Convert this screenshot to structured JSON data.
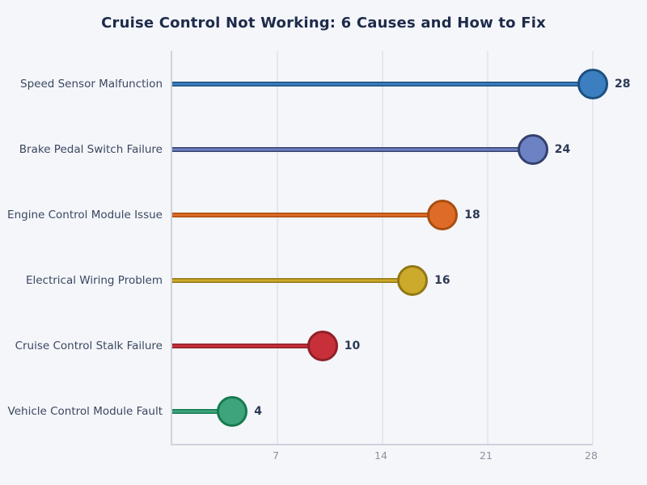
{
  "title": "Cruise Control Not Working: 6 Causes and How to Fix",
  "chart_data": {
    "type": "lollipop",
    "orientation": "horizontal",
    "title": "Cruise Control Not Working: 6 Causes and How to Fix",
    "categories": [
      "Speed Sensor Malfunction",
      "Brake Pedal Switch Failure",
      "Engine Control Module Issue",
      "Electrical Wiring Problem",
      "Cruise Control Stalk Failure",
      "Vehicle Control Module Fault"
    ],
    "values": [
      28,
      24,
      18,
      16,
      10,
      4
    ],
    "value_labels": [
      "28",
      "24",
      "18",
      "16",
      "10",
      "4"
    ],
    "colors": [
      {
        "fill": "#3c7fc0",
        "edge": "#1e4f80"
      },
      {
        "fill": "#6c82c2",
        "edge": "#35406e"
      },
      {
        "fill": "#de6c28",
        "edge": "#a94d10"
      },
      {
        "fill": "#cbaa2c",
        "edge": "#927713"
      },
      {
        "fill": "#c73039",
        "edge": "#911f27"
      },
      {
        "fill": "#3ea47b",
        "edge": "#187a50"
      }
    ],
    "xlim": [
      0,
      28
    ],
    "xticks": [
      7,
      14,
      21,
      28
    ],
    "xtick_labels": [
      "7",
      "14",
      "21",
      "28"
    ],
    "grid": "vertical",
    "legend": "none",
    "background_color": "#f4f6fa",
    "text_color": "#1e2b4a"
  }
}
